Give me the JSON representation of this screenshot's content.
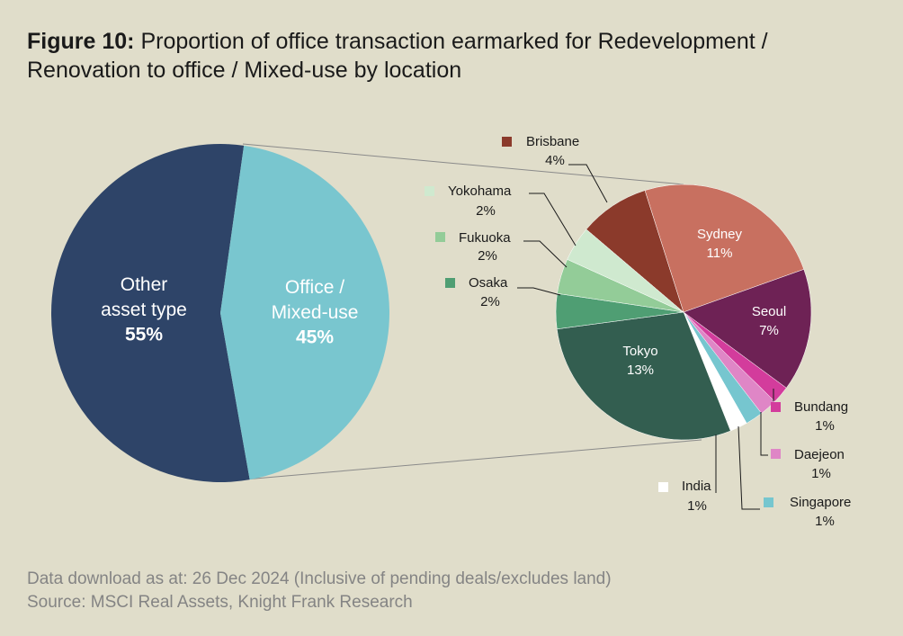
{
  "title_label": "Figure 10:",
  "title": "Proportion of office transaction earmarked for Redevelopment / Renovation to office / Mixed-use by location",
  "chart_data": [
    {
      "type": "pie",
      "categories": [
        "Other asset type",
        "Office / Mixed-use"
      ],
      "values": [
        55,
        45
      ],
      "value_labels": [
        "55%",
        "45%"
      ],
      "colors": [
        "#2e4468",
        "#79c6cf"
      ]
    },
    {
      "type": "pie",
      "categories": [
        "Brisbane",
        "Sydney",
        "Seoul",
        "Bundang",
        "Daejeon",
        "Singapore",
        "India",
        "Tokyo",
        "Osaka",
        "Fukuoka",
        "Yokohama"
      ],
      "values": [
        4,
        11,
        7,
        1,
        1,
        1,
        1,
        13,
        2,
        2,
        2
      ],
      "value_labels": [
        "4%",
        "11%",
        "7%",
        "1%",
        "1%",
        "1%",
        "1%",
        "13%",
        "2%",
        "2%",
        "2%"
      ],
      "colors": [
        "#8b3a2b",
        "#c87060",
        "#6e2255",
        "#d33c9c",
        "#df86c6",
        "#76c6cf",
        "#ffffff",
        "#335e50",
        "#4f9e73",
        "#93cc98",
        "#cfe9cf"
      ]
    }
  ],
  "footer": [
    "Data download as at: 26 Dec 2024 (Inclusive of pending deals/excludes land)",
    "Source: MSCI Real Assets, Knight Frank Research"
  ]
}
